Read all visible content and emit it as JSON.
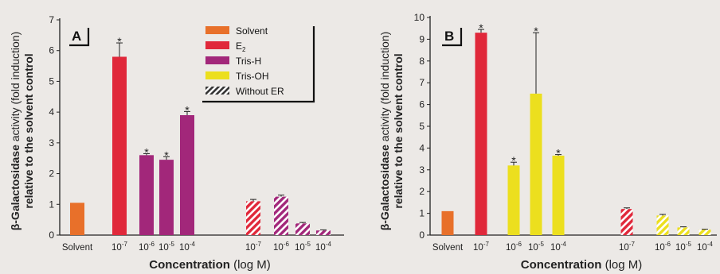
{
  "colors": {
    "background": "#ece9e6",
    "solvent": "#e8702a",
    "e2": "#e0283a",
    "tris_h": "#a2277a",
    "tris_oh": "#ecdf1e",
    "axis": "#222222",
    "hatch_light": "#ffffff"
  },
  "legend": {
    "items": [
      {
        "key": "solvent",
        "label": "Solvent",
        "hatched": false
      },
      {
        "key": "e2",
        "label": "E",
        "sub": "2",
        "hatched": false
      },
      {
        "key": "tris_h",
        "label": "Tris-H",
        "hatched": false
      },
      {
        "key": "tris_oh",
        "label": "Tris-OH",
        "hatched": false
      },
      {
        "key": "without",
        "label": "Without ER",
        "hatched": true
      }
    ]
  },
  "chart_data": [
    {
      "type": "bar",
      "panel": "A",
      "ylim": [
        0,
        7
      ],
      "yticks": [
        0,
        1,
        2,
        3,
        4,
        5,
        6,
        7
      ],
      "xlabel": "Concentration (log M)",
      "ylabel_line1": "β-Galactosidase activity (fold induction)",
      "ylabel_line2": "relative to the solvent control",
      "xtick_labels": [
        {
          "base": "Solvent",
          "exp": ""
        },
        {
          "base": "10",
          "exp": "-7"
        },
        {
          "base": "10",
          "exp": "-6"
        },
        {
          "base": "10",
          "exp": "-5"
        },
        {
          "base": "10",
          "exp": "-4"
        },
        {
          "base": "10",
          "exp": "-7"
        },
        {
          "base": "10",
          "exp": "-6"
        },
        {
          "base": "10",
          "exp": "-5"
        },
        {
          "base": "10",
          "exp": "-4"
        }
      ],
      "bars": [
        {
          "group": "Solvent",
          "series": "solvent",
          "value": 1.05,
          "error": 0,
          "sig": false,
          "hatched": false
        },
        {
          "group": "1e-7",
          "series": "e2",
          "value": 5.8,
          "error": 0.45,
          "sig": true,
          "hatched": false
        },
        {
          "group": "1e-6",
          "series": "tris_h",
          "value": 2.6,
          "error": 0.05,
          "sig": true,
          "hatched": false
        },
        {
          "group": "1e-5",
          "series": "tris_h",
          "value": 2.45,
          "error": 0.1,
          "sig": true,
          "hatched": false
        },
        {
          "group": "1e-4",
          "series": "tris_h",
          "value": 3.9,
          "error": 0.12,
          "sig": true,
          "hatched": false
        },
        {
          "group": "1e-7",
          "series": "e2",
          "value": 1.1,
          "error": 0.06,
          "sig": false,
          "hatched": true
        },
        {
          "group": "1e-6",
          "series": "tris_h",
          "value": 1.25,
          "error": 0.05,
          "sig": false,
          "hatched": true
        },
        {
          "group": "1e-5",
          "series": "tris_h",
          "value": 0.38,
          "error": 0.03,
          "sig": false,
          "hatched": true
        },
        {
          "group": "1e-4",
          "series": "tris_h",
          "value": 0.15,
          "error": 0.02,
          "sig": false,
          "hatched": true
        }
      ]
    },
    {
      "type": "bar",
      "panel": "B",
      "ylim": [
        0,
        10
      ],
      "yticks": [
        0,
        1,
        2,
        3,
        4,
        5,
        6,
        7,
        8,
        9,
        10
      ],
      "xlabel": "Concentration (log M)",
      "ylabel_line1": "β-Galactosidase activity (fold induction)",
      "ylabel_line2": "relative to the solvent control",
      "xtick_labels": [
        {
          "base": "Solvent",
          "exp": ""
        },
        {
          "base": "10",
          "exp": "-7"
        },
        {
          "base": "10",
          "exp": "-6"
        },
        {
          "base": "10",
          "exp": "-5"
        },
        {
          "base": "10",
          "exp": "-4"
        },
        {
          "base": "10",
          "exp": "-7"
        },
        {
          "base": "10",
          "exp": "-6"
        },
        {
          "base": "10",
          "exp": "-5"
        },
        {
          "base": "10",
          "exp": "-4"
        }
      ],
      "bars": [
        {
          "group": "Solvent",
          "series": "solvent",
          "value": 1.1,
          "error": 0,
          "sig": false,
          "hatched": false
        },
        {
          "group": "1e-7",
          "series": "e2",
          "value": 9.3,
          "error": 0.15,
          "sig": true,
          "hatched": false
        },
        {
          "group": "1e-6",
          "series": "tris_oh",
          "value": 3.2,
          "error": 0.15,
          "sig": true,
          "hatched": false
        },
        {
          "group": "1e-5",
          "series": "tris_oh",
          "value": 6.5,
          "error": 2.8,
          "sig": true,
          "hatched": false
        },
        {
          "group": "1e-4",
          "series": "tris_oh",
          "value": 3.65,
          "error": 0.05,
          "sig": true,
          "hatched": false
        },
        {
          "group": "1e-7",
          "series": "e2",
          "value": 1.2,
          "error": 0.05,
          "sig": false,
          "hatched": true
        },
        {
          "group": "1e-6",
          "series": "tris_oh",
          "value": 0.9,
          "error": 0.05,
          "sig": false,
          "hatched": true
        },
        {
          "group": "1e-5",
          "series": "tris_oh",
          "value": 0.35,
          "error": 0.03,
          "sig": false,
          "hatched": true
        },
        {
          "group": "1e-4",
          "series": "tris_oh",
          "value": 0.25,
          "error": 0.02,
          "sig": false,
          "hatched": true
        }
      ]
    }
  ]
}
